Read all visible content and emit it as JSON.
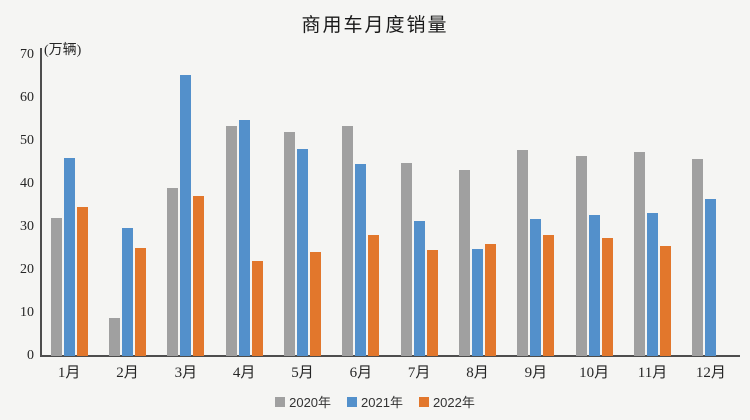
{
  "title": "商用车月度销量",
  "y_axis_unit_label": "(万辆)",
  "chart_data": {
    "type": "bar",
    "title": "商用车月度销量",
    "ylabel": "(万辆)",
    "ylim": [
      0,
      70
    ],
    "yticks": [
      0,
      10,
      20,
      30,
      40,
      50,
      60,
      70
    ],
    "grid": false,
    "legend_position": "bottom",
    "categories": [
      "1月",
      "2月",
      "3月",
      "4月",
      "5月",
      "6月",
      "7月",
      "8月",
      "9月",
      "10月",
      "11月",
      "12月"
    ],
    "series": [
      {
        "name": "2020年",
        "color": "#A0A0A0",
        "values": [
          32.0,
          8.8,
          39.0,
          53.5,
          52.0,
          53.6,
          44.9,
          43.3,
          47.8,
          46.6,
          47.4,
          45.8
        ]
      },
      {
        "name": "2021年",
        "color": "#5390CB",
        "values": [
          46.0,
          29.8,
          65.3,
          55.0,
          48.2,
          44.7,
          31.5,
          25.0,
          31.9,
          32.8,
          33.2,
          36.5
        ]
      },
      {
        "name": "2022年",
        "color": "#E2772C",
        "values": [
          34.6,
          25.2,
          37.2,
          22.0,
          24.1,
          28.2,
          24.7,
          26.0,
          28.1,
          27.4,
          25.6,
          null
        ]
      }
    ]
  }
}
